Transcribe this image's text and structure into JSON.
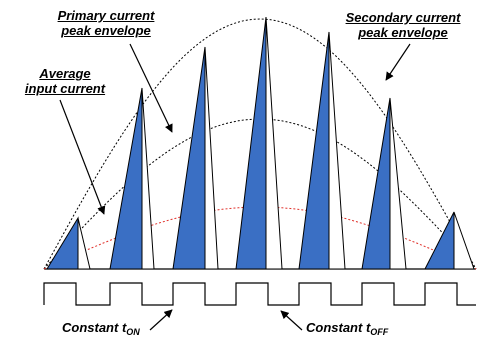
{
  "labels": {
    "primary_envelope": [
      "Primary current",
      "peak envelope"
    ],
    "secondary_envelope": [
      "Secondary current",
      "peak envelope"
    ],
    "average_current": [
      "Average",
      "input current"
    ],
    "constant_ton": {
      "text": "Constant t",
      "sub": "ON"
    },
    "constant_toff": {
      "text": "Constant t",
      "sub": "OFF"
    }
  },
  "colors": {
    "primary_fill": "#3a6fc4",
    "average_curve": "#e0302a",
    "line": "#000000",
    "background": "#ffffff"
  }
}
